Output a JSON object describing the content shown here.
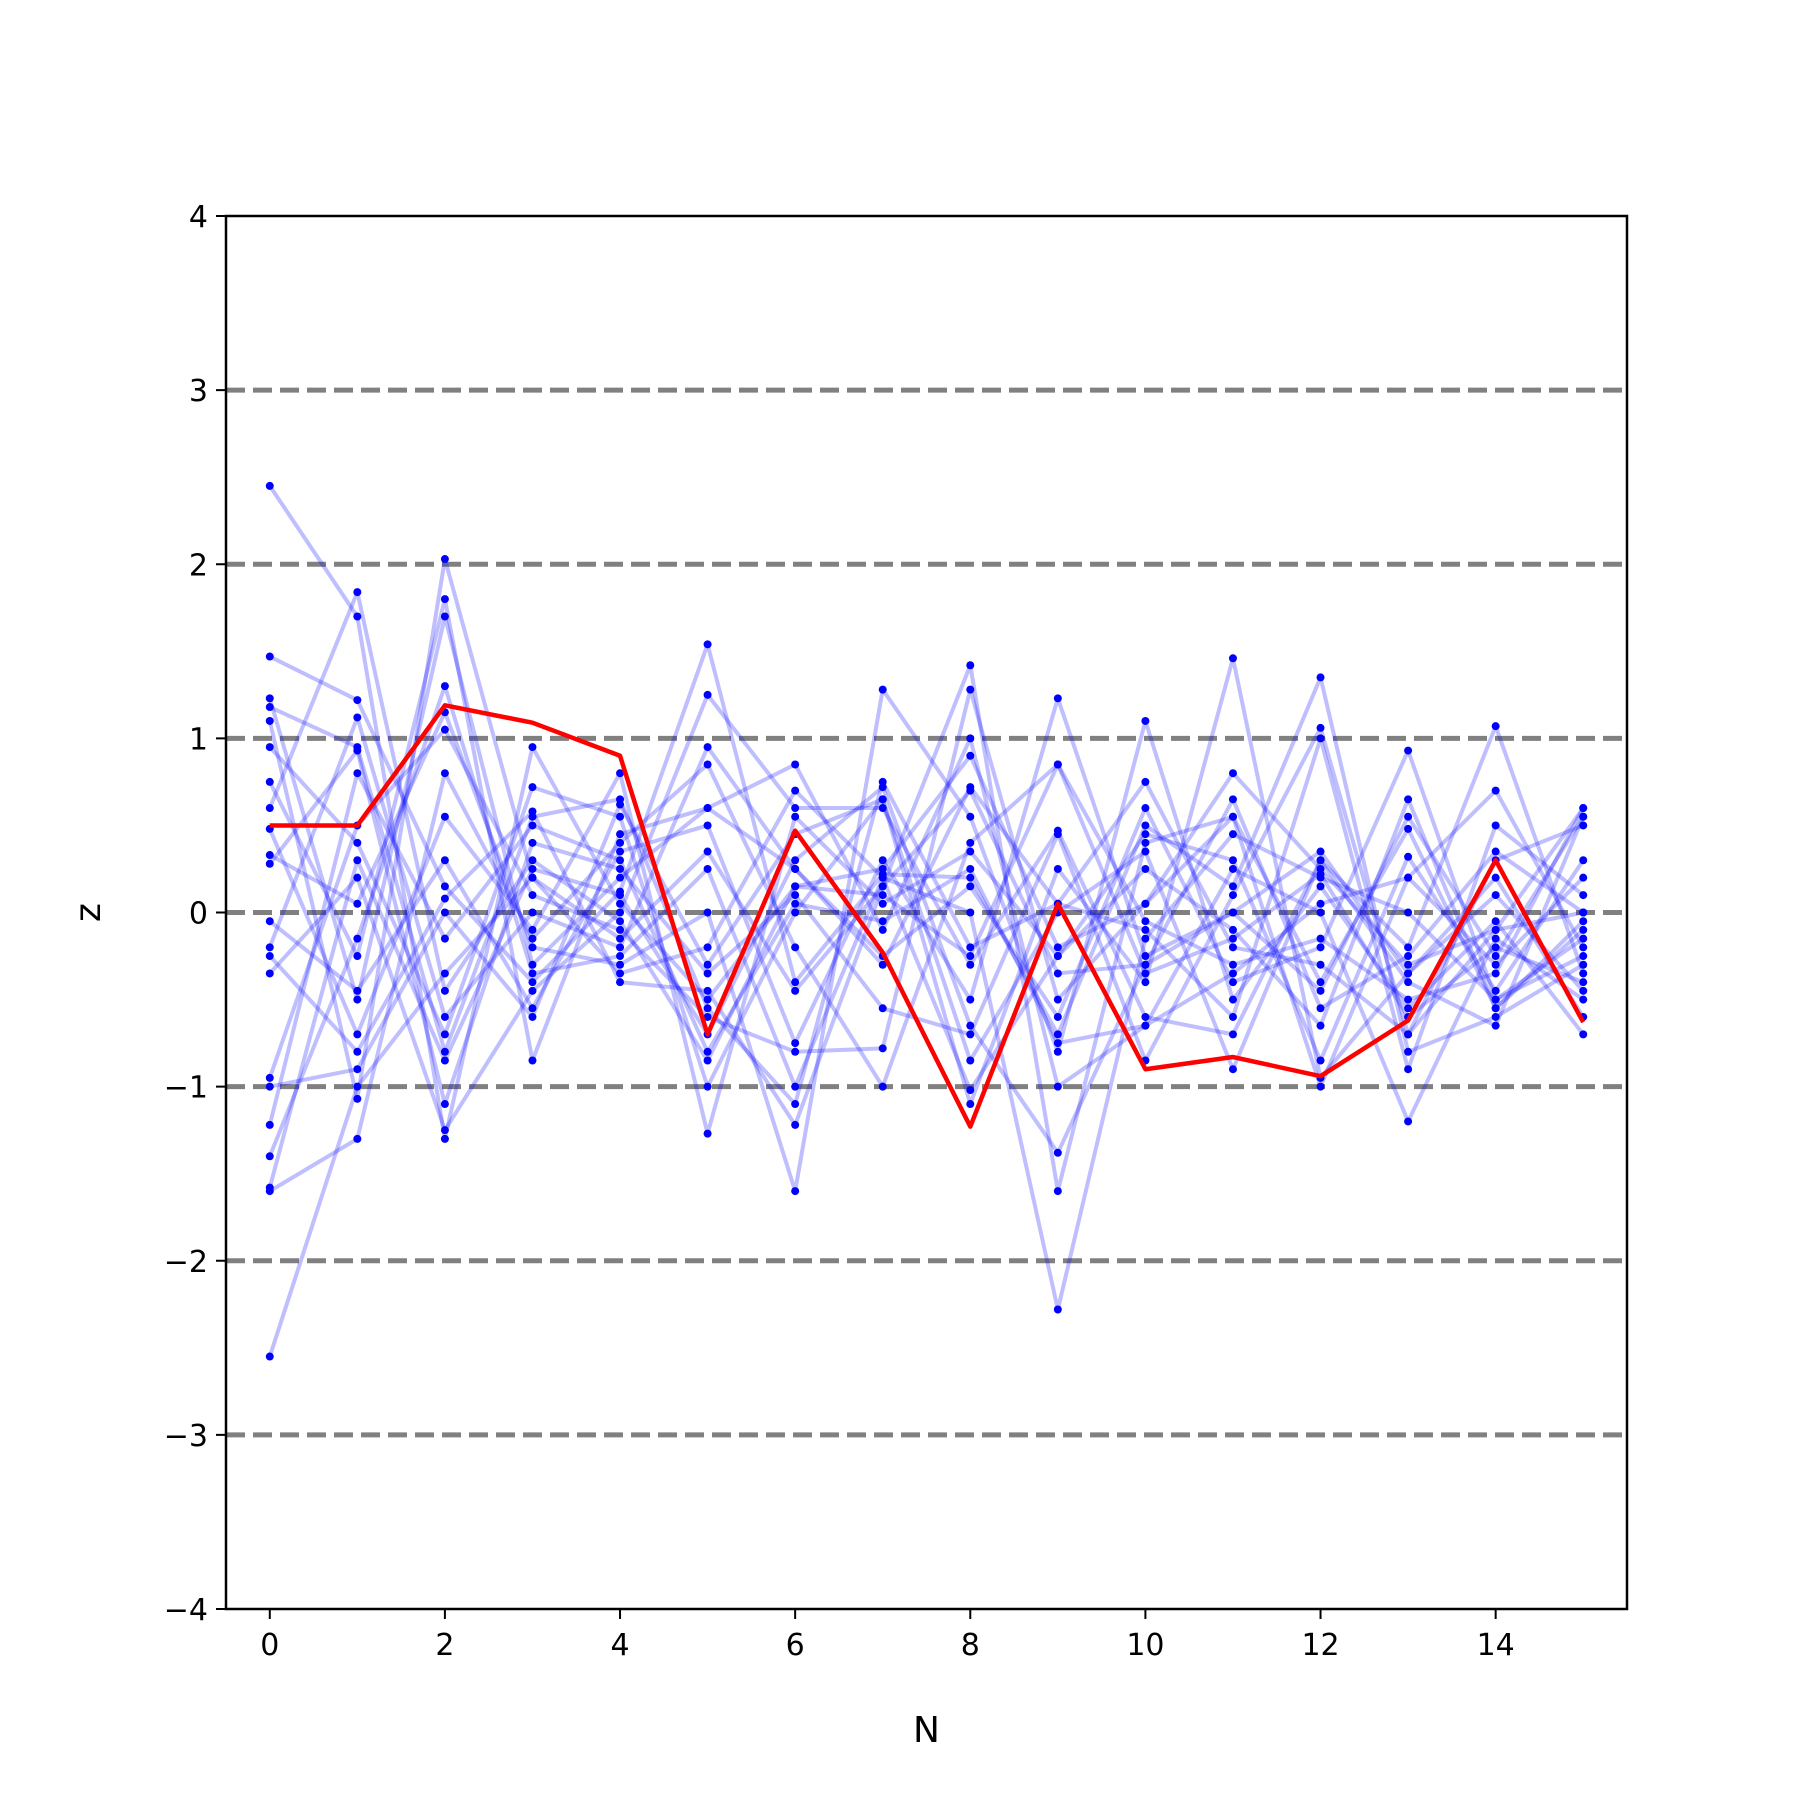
{
  "chart_data": {
    "type": "line",
    "xlabel": "N",
    "ylabel": "z",
    "xlim": [
      -0.5,
      15.5
    ],
    "ylim": [
      -4,
      4
    ],
    "x_ticks": [
      0,
      2,
      4,
      6,
      8,
      10,
      12,
      14
    ],
    "y_ticks": [
      -4,
      -3,
      -2,
      -1,
      0,
      1,
      2,
      3,
      4
    ],
    "y_tick_labels": [
      "−4",
      "−3",
      "−2",
      "−1",
      "0",
      "1",
      "2",
      "3",
      "4"
    ],
    "reference_lines": {
      "y": [
        -3,
        -2,
        -1,
        0,
        1,
        2,
        3
      ],
      "style": "dashed",
      "color": "#808080"
    },
    "x": [
      0,
      1,
      2,
      3,
      4,
      5,
      6,
      7,
      8,
      9,
      10,
      11,
      12,
      13,
      14,
      15
    ],
    "background_series_color": "#0000ff",
    "background_series": [
      [
        2.45,
        1.7,
        -1.3,
        0.95,
        0.05,
        -0.5,
        0.15,
        0.25,
        0.9,
        -0.2,
        0.05,
        0.8,
        0.25,
        -0.3,
        -0.1,
        0.6
      ],
      [
        1.47,
        1.22,
        0.15,
        -0.4,
        0.12,
        1.54,
        -0.4,
        0.22,
        0.2,
        -0.7,
        0.5,
        0.15,
        1.35,
        -0.8,
        -0.6,
        -0.3
      ],
      [
        1.23,
        -0.5,
        1.7,
        -0.3,
        0.2,
        0.6,
        0.85,
        -0.1,
        1.0,
        -1.0,
        -0.65,
        -0.35,
        0.05,
        0.2,
        0.7,
        -0.2
      ],
      [
        1.18,
        0.95,
        -0.8,
        0.55,
        0.65,
        -0.55,
        -1.1,
        0.75,
        -0.2,
        0.05,
        0.75,
        -0.2,
        -0.3,
        -0.7,
        0.3,
        0.5
      ],
      [
        1.1,
        -1.07,
        2.03,
        0.2,
        -0.15,
        0.35,
        -0.45,
        0.15,
        1.42,
        -1.6,
        0.4,
        0.55,
        -0.4,
        0.48,
        -0.55,
        -0.05
      ],
      [
        0.95,
        0.4,
        -0.7,
        0.72,
        0.55,
        -1.0,
        0.0,
        0.65,
        -1.1,
        0.25,
        -0.4,
        1.46,
        -0.95,
        -0.35,
        0.2,
        -0.6
      ],
      [
        0.75,
        -0.25,
        1.8,
        -0.85,
        0.45,
        0.6,
        0.25,
        -0.3,
        0.72,
        0.05,
        -0.1,
        -0.6,
        1.0,
        -0.9,
        0.5,
        0.1
      ],
      [
        0.6,
        1.84,
        -0.45,
        0.3,
        -0.05,
        -0.85,
        0.15,
        0.1,
        -0.25,
        0.85,
        -0.35,
        -0.15,
        0.22,
        -0.6,
        -0.2,
        -0.4
      ],
      [
        0.48,
        -0.7,
        0.55,
        -0.1,
        0.8,
        -1.27,
        0.55,
        0.05,
        0.35,
        -0.25,
        0.45,
        0.3,
        -0.85,
        0.32,
        -0.45,
        0.3
      ],
      [
        0.33,
        0.05,
        1.15,
        -0.2,
        -0.3,
        0.0,
        -1.6,
        1.28,
        0.55,
        -0.8,
        1.1,
        -0.5,
        0.15,
        -0.55,
        -0.05,
        -0.7
      ],
      [
        0.28,
        0.93,
        -1.1,
        0.4,
        0.25,
        -0.35,
        0.1,
        -0.55,
        -0.7,
        0.45,
        -0.85,
        0.1,
        1.06,
        -0.7,
        -0.1,
        0.0
      ],
      [
        -0.05,
        -0.45,
        0.3,
        -0.55,
        0.35,
        0.5,
        -0.75,
        0.3,
        -0.5,
        1.23,
        -0.25,
        0.0,
        -0.45,
        0.55,
        -0.25,
        0.55
      ],
      [
        -0.2,
        1.12,
        -0.6,
        0.0,
        -0.2,
        0.95,
        0.25,
        -0.25,
        0.15,
        -0.6,
        0.6,
        -0.4,
        -0.2,
        0.93,
        -0.5,
        -0.25
      ],
      [
        -0.25,
        -0.8,
        0.08,
        0.58,
        -0.4,
        -0.45,
        -1.22,
        0.15,
        0.7,
        -0.35,
        -0.3,
        0.65,
        -0.55,
        -0.25,
        0.35,
        0.0
      ],
      [
        -0.35,
        0.2,
        -1.25,
        -0.45,
        0.0,
        1.25,
        0.6,
        0.6,
        -0.3,
        0.47,
        -0.6,
        -0.7,
        0.3,
        -0.4,
        -0.65,
        0.55
      ],
      [
        -0.95,
        0.5,
        1.05,
        0.1,
        -0.1,
        -0.6,
        -0.8,
        -0.78,
        1.28,
        -0.5,
        0.05,
        0.55,
        -1.0,
        0.2,
        -0.3,
        0.2
      ],
      [
        -1.0,
        -0.9,
        0.0,
        -0.6,
        0.62,
        -0.3,
        0.45,
        0.65,
        -0.85,
        0.0,
        0.35,
        -0.9,
        0.3,
        -0.2,
        1.07,
        -0.35
      ],
      [
        -1.22,
        0.8,
        -0.15,
        0.5,
        0.3,
        -0.8,
        0.05,
        -0.05,
        0.25,
        -0.75,
        -0.65,
        0.25,
        0.0,
        -1.2,
        -0.15,
        -0.5
      ],
      [
        -1.4,
        -0.15,
        1.3,
        -0.35,
        -0.25,
        0.25,
        -1.0,
        0.2,
        -1.02,
        -0.25,
        0.25,
        -0.1,
        -0.65,
        0.65,
        -0.55,
        -0.1
      ],
      [
        -1.58,
        0.3,
        -0.85,
        0.25,
        0.1,
        -0.7,
        0.3,
        0.72,
        -0.65,
        -1.38,
        -0.3,
        0.0,
        0.35,
        -0.35,
        0.1,
        -0.45
      ],
      [
        -1.6,
        -1.3,
        0.8,
        -0.15,
        0.4,
        0.85,
        -0.2,
        -1.0,
        0.4,
        0.85,
        -0.05,
        -0.3,
        -0.15,
        -0.5,
        -0.35,
        0.6
      ],
      [
        -2.55,
        -1.0,
        -0.35,
        0.2,
        -0.35,
        -0.2,
        0.7,
        0.2,
        0.0,
        -2.28,
        -0.15,
        0.45,
        0.2,
        0.0,
        -0.5,
        -0.15
      ]
    ],
    "highlight_series_color": "#ff0000",
    "highlight_series": [
      0.5,
      0.5,
      1.19,
      1.09,
      0.9,
      -0.7,
      0.47,
      -0.23,
      -1.23,
      0.05,
      -0.9,
      -0.83,
      -0.94,
      -0.62,
      0.3,
      -0.63
    ]
  }
}
